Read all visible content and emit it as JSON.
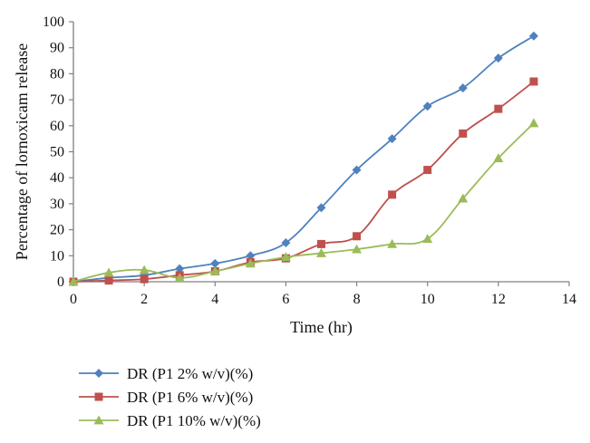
{
  "chart_data": {
    "type": "line",
    "title": "",
    "xlabel": "Time (hr)",
    "ylabel": "Percentage of lornoxicam release",
    "xlim": [
      0,
      14
    ],
    "ylim": [
      0,
      100
    ],
    "xticks": [
      0,
      2,
      4,
      6,
      8,
      10,
      12,
      14
    ],
    "yticks": [
      0,
      10,
      20,
      30,
      40,
      50,
      60,
      70,
      80,
      90,
      100
    ],
    "grid": false,
    "legend_position": "bottom-left",
    "x": [
      0,
      1,
      2,
      3,
      4,
      5,
      6,
      7,
      8,
      9,
      10,
      11,
      12,
      13
    ],
    "series": [
      {
        "name": "DR (P1 2% w/v)(%)",
        "color": "#4F81BD",
        "marker": "diamond",
        "values": [
          0,
          1.5,
          2.5,
          5,
          7,
          10,
          15,
          28.5,
          43,
          55,
          67.5,
          74.5,
          86,
          94.5
        ]
      },
      {
        "name": "DR (P1 6% w/v)(%)",
        "color": "#C0504D",
        "marker": "square",
        "values": [
          0,
          0.5,
          1,
          2.5,
          4,
          7.5,
          9,
          14.5,
          17.5,
          33.5,
          43,
          57,
          66.5,
          77
        ]
      },
      {
        "name": "DR (P1 10% w/v)(%)",
        "color": "#9BBB59",
        "marker": "triangle",
        "values": [
          0,
          3.5,
          4.5,
          1.5,
          4,
          7,
          9.5,
          11,
          12.5,
          14.5,
          16.5,
          32,
          47.5,
          61
        ]
      }
    ]
  }
}
